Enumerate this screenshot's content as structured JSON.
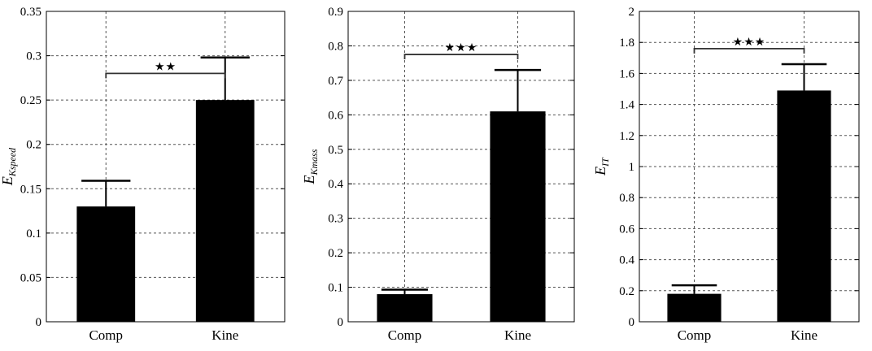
{
  "chart_data": [
    {
      "type": "bar",
      "categories": [
        "Comp",
        "Kine"
      ],
      "values": [
        0.13,
        0.25
      ],
      "errors": [
        0.029,
        0.048
      ],
      "ylim": [
        0,
        0.35
      ],
      "yticks": [
        "0",
        "0.05",
        "0.1",
        "0.15",
        "0.2",
        "0.25",
        "0.3",
        "0.35"
      ],
      "ylabel_main": "E",
      "ylabel_sub": "Kspeed",
      "significance": {
        "label": "★★",
        "y": 0.28
      },
      "grid": true,
      "bar_color": "#000000"
    },
    {
      "type": "bar",
      "categories": [
        "Comp",
        "Kine"
      ],
      "values": [
        0.08,
        0.61
      ],
      "errors": [
        0.013,
        0.12
      ],
      "ylim": [
        0,
        0.9
      ],
      "yticks": [
        "0",
        "0.1",
        "0.2",
        "0.3",
        "0.4",
        "0.5",
        "0.6",
        "0.7",
        "0.8",
        "0.9"
      ],
      "ylabel_main": "E",
      "ylabel_sub": "Kmass",
      "significance": {
        "label": "★★★",
        "y": 0.775
      },
      "grid": true,
      "bar_color": "#000000"
    },
    {
      "type": "bar",
      "categories": [
        "Comp",
        "Kine"
      ],
      "values": [
        0.18,
        1.49
      ],
      "errors": [
        0.055,
        0.17
      ],
      "ylim": [
        0,
        2
      ],
      "yticks": [
        "0",
        "0.2",
        "0.4",
        "0.6",
        "0.8",
        "1",
        "1.2",
        "1.4",
        "1.6",
        "1.8",
        "2"
      ],
      "ylabel_main": "E",
      "ylabel_sub": "IT",
      "significance": {
        "label": "★★★",
        "y": 1.76
      },
      "grid": true,
      "bar_color": "#000000"
    }
  ]
}
